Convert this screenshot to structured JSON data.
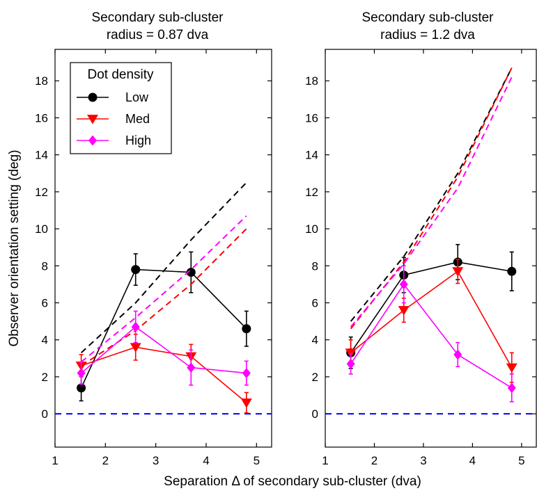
{
  "figure": {
    "xlabel": "Separation Δ of secondary sub-cluster (dva)",
    "ylabel": "Observer orientation setting (deg)"
  },
  "legend": {
    "title": "Dot density",
    "entries": [
      {
        "label": "Low",
        "color": "#000000",
        "marker": "circle"
      },
      {
        "label": "Med",
        "color": "#ff0000",
        "marker": "triangle-down"
      },
      {
        "label": "High",
        "color": "#ff00ff",
        "marker": "diamond"
      }
    ]
  },
  "colors": {
    "low": "#000000",
    "med": "#ff0000",
    "high": "#ff00ff",
    "zero_line": "#0000ff"
  },
  "chart_data": [
    {
      "type": "line",
      "title_line1": "Secondary sub-cluster",
      "title_line2": "radius = 0.87 dva",
      "xlim": [
        1,
        5.3
      ],
      "ylim": [
        -1.8,
        19.7
      ],
      "xticks": [
        1,
        2,
        3,
        4,
        5
      ],
      "yticks": [
        0,
        2,
        4,
        6,
        8,
        10,
        12,
        14,
        16,
        18
      ],
      "x": [
        1.52,
        2.6,
        3.7,
        4.8
      ],
      "series": [
        {
          "name": "Low",
          "color": "#000000",
          "marker": "circle",
          "values": [
            1.4,
            7.8,
            7.65,
            4.6
          ],
          "err": [
            0.7,
            0.85,
            1.1,
            0.95
          ],
          "prediction": [
            3.3,
            6.0,
            9.4,
            12.5
          ]
        },
        {
          "name": "Med",
          "color": "#ff0000",
          "marker": "triangle-down",
          "values": [
            2.6,
            3.6,
            3.1,
            0.6
          ],
          "err": [
            0.6,
            0.7,
            0.65,
            0.55
          ],
          "prediction": [
            2.6,
            4.5,
            7.0,
            10.0
          ]
        },
        {
          "name": "High",
          "color": "#ff00ff",
          "marker": "diamond",
          "values": [
            2.2,
            4.7,
            2.5,
            2.2
          ],
          "err": [
            0.6,
            0.85,
            0.95,
            0.65
          ],
          "prediction": [
            2.8,
            5.2,
            7.8,
            10.7
          ]
        }
      ],
      "zero_line": 0
    },
    {
      "type": "line",
      "title_line1": "Secondary sub-cluster",
      "title_line2": "radius = 1.2 dva",
      "xlim": [
        1,
        5.3
      ],
      "ylim": [
        -1.8,
        19.7
      ],
      "xticks": [
        1,
        2,
        3,
        4,
        5
      ],
      "yticks": [
        0,
        2,
        4,
        6,
        8,
        10,
        12,
        14,
        16,
        18
      ],
      "x": [
        1.52,
        2.6,
        3.7,
        4.8
      ],
      "series": [
        {
          "name": "Low",
          "color": "#000000",
          "marker": "circle",
          "values": [
            3.3,
            7.5,
            8.2,
            7.7
          ],
          "err": [
            0.85,
            0.95,
            0.95,
            1.05
          ],
          "prediction": [
            5.0,
            8.5,
            13.0,
            18.7
          ]
        },
        {
          "name": "Med",
          "color": "#ff0000",
          "marker": "triangle-down",
          "values": [
            3.3,
            5.6,
            7.7,
            2.5
          ],
          "err": [
            0.7,
            0.65,
            0.65,
            0.8
          ],
          "prediction": [
            4.6,
            8.2,
            12.8,
            18.7
          ]
        },
        {
          "name": "High",
          "color": "#ff00ff",
          "marker": "diamond",
          "values": [
            2.7,
            7.0,
            3.2,
            1.4
          ],
          "err": [
            0.55,
            1.0,
            0.65,
            0.75
          ],
          "prediction": [
            4.7,
            8.1,
            12.2,
            18.2
          ]
        }
      ],
      "zero_line": 0
    }
  ]
}
